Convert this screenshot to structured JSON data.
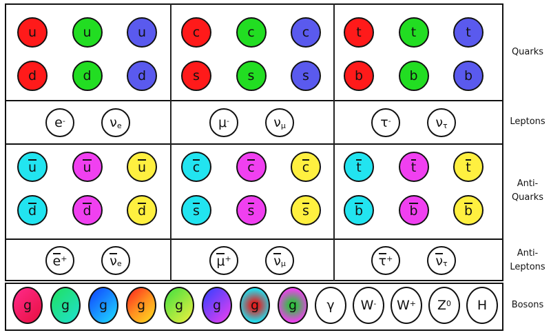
{
  "row_labels": {
    "quarks": "Quarks",
    "leptons": "Leptons",
    "antiquarks": "Anti-\nQuarks",
    "antileptons": "Anti-\nLeptons",
    "bosons": "Bosons"
  },
  "colors": {
    "red": "#ff1a1a",
    "green": "#22dd22",
    "blue": "#5a5aee",
    "cyan": "#22e4f0",
    "magenta": "#f040f0",
    "yellow": "#fff040"
  },
  "quarks": [
    [
      {
        "t": "u"
      },
      {
        "t": "c"
      },
      {
        "t": "t"
      }
    ],
    [
      {
        "t": "d"
      },
      {
        "t": "s"
      },
      {
        "t": "b"
      }
    ]
  ],
  "leptons": [
    [
      {
        "t": "e",
        "sup": "-"
      },
      {
        "t": "ν",
        "sub": "e"
      }
    ],
    [
      {
        "t": "μ",
        "sup": "-"
      },
      {
        "t": "ν",
        "sub": "μ"
      }
    ],
    [
      {
        "t": "τ",
        "sup": "-"
      },
      {
        "t": "ν",
        "sub": "τ"
      }
    ]
  ],
  "antileptons": [
    [
      {
        "t": "e",
        "sup": "+"
      },
      {
        "t": "ν",
        "sub": "e"
      }
    ],
    [
      {
        "t": "μ",
        "sup": "+"
      },
      {
        "t": "ν",
        "sub": "μ"
      }
    ],
    [
      {
        "t": "τ",
        "sup": "+"
      },
      {
        "t": "ν",
        "sub": "τ"
      }
    ]
  ],
  "gluons": {
    "label": "g",
    "fills": [
      "linear-gradient(135deg,#ff2a8a,#e81040)",
      "linear-gradient(135deg,#20e060,#20e0d0)",
      "linear-gradient(135deg,#1040ff,#20e0ff)",
      "linear-gradient(135deg,#ff2020,#ff9020,#ffe020)",
      "linear-gradient(135deg,#40e040,#f0f040)",
      "linear-gradient(135deg,#3040ff,#f040f0)",
      "radial-gradient(circle,#e02020 15%,#20e0f0 75%)",
      "radial-gradient(circle,#30c040 15%,#f040f0 75%)"
    ]
  },
  "bosons": [
    {
      "t": "γ"
    },
    {
      "t": "W",
      "sup": "-"
    },
    {
      "t": "W",
      "sup": "+"
    },
    {
      "t": "Z",
      "sup": "0"
    },
    {
      "t": "H"
    }
  ]
}
